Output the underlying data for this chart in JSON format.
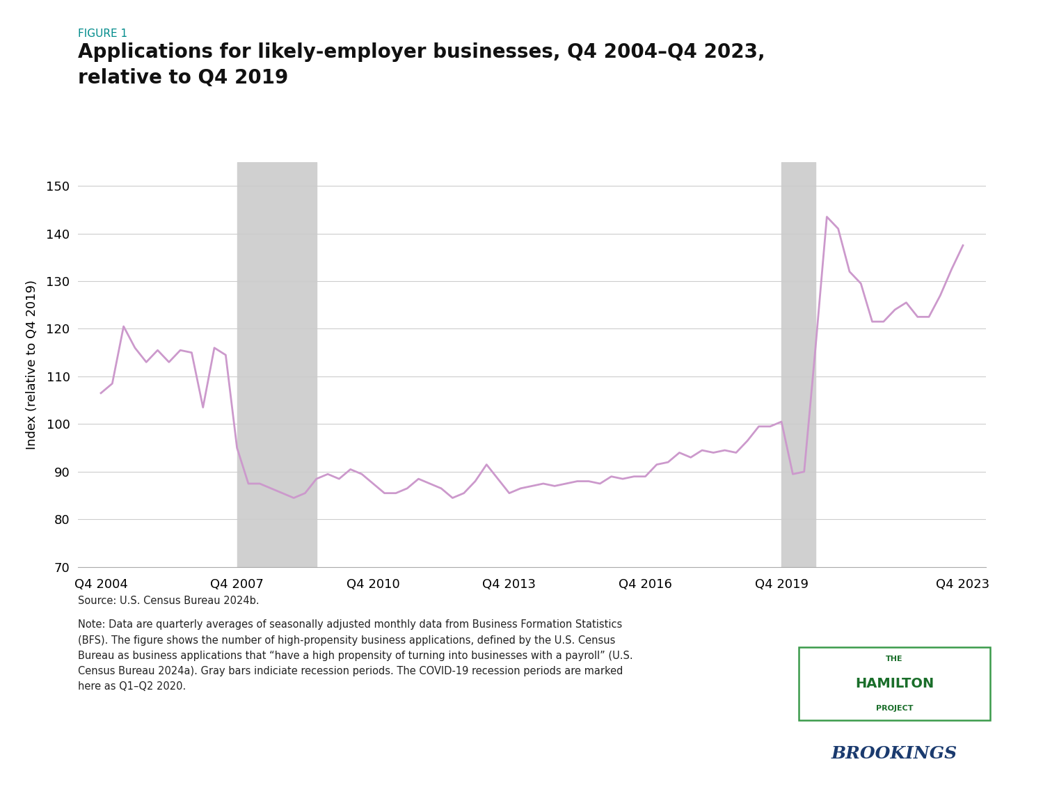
{
  "title_label": "FIGURE 1",
  "title_line1": "Applications for likely-employer businesses, Q4 2004–Q4 2023,",
  "title_line2": "relative to Q4 2019",
  "ylabel": "Index (relative to Q4 2019)",
  "ylim": [
    70,
    155
  ],
  "yticks": [
    70,
    80,
    90,
    100,
    110,
    120,
    130,
    140,
    150
  ],
  "line_color": "#cc99cc",
  "line_width": 2.0,
  "background_color": "#ffffff",
  "recession_color": "#d0d0d0",
  "recession_alpha": 1.0,
  "recessions": [
    {
      "start": 2007.75,
      "end": 2009.5
    },
    {
      "start": 2019.75,
      "end": 2020.5
    }
  ],
  "source_text": "Source: U.S. Census Bureau 2024b.",
  "note_text": "Note: Data are quarterly averages of seasonally adjusted monthly data from Business Formation Statistics\n(BFS). The figure shows the number of high-propensity business applications, defined by the U.S. Census\nBureau as business applications that “have a high propensity of turning into businesses with a payroll” (U.S.\nCensus Bureau 2024a). Gray bars indiciate recession periods. The COVID-19 recession periods are marked\nhere as Q1–Q2 2020.",
  "xtick_labels": [
    "Q4 2004",
    "Q4 2007",
    "Q4 2010",
    "Q4 2013",
    "Q4 2016",
    "Q4 2019",
    "Q4 2023"
  ],
  "xtick_positions": [
    2004.75,
    2007.75,
    2010.75,
    2013.75,
    2016.75,
    2019.75,
    2023.75
  ],
  "xlim": [
    2004.25,
    2024.25
  ],
  "data": [
    [
      2004.75,
      106.5
    ],
    [
      2005.0,
      108.5
    ],
    [
      2005.25,
      120.5
    ],
    [
      2005.5,
      116.0
    ],
    [
      2005.75,
      113.0
    ],
    [
      2006.0,
      115.5
    ],
    [
      2006.25,
      113.0
    ],
    [
      2006.5,
      115.5
    ],
    [
      2006.75,
      115.0
    ],
    [
      2007.0,
      103.5
    ],
    [
      2007.25,
      116.0
    ],
    [
      2007.5,
      114.5
    ],
    [
      2007.75,
      95.0
    ],
    [
      2008.0,
      87.5
    ],
    [
      2008.25,
      87.5
    ],
    [
      2008.5,
      86.5
    ],
    [
      2008.75,
      85.5
    ],
    [
      2009.0,
      84.5
    ],
    [
      2009.25,
      85.5
    ],
    [
      2009.5,
      88.5
    ],
    [
      2009.75,
      89.5
    ],
    [
      2010.0,
      88.5
    ],
    [
      2010.25,
      90.5
    ],
    [
      2010.5,
      89.5
    ],
    [
      2010.75,
      87.5
    ],
    [
      2011.0,
      85.5
    ],
    [
      2011.25,
      85.5
    ],
    [
      2011.5,
      86.5
    ],
    [
      2011.75,
      88.5
    ],
    [
      2012.0,
      87.5
    ],
    [
      2012.25,
      86.5
    ],
    [
      2012.5,
      84.5
    ],
    [
      2012.75,
      85.5
    ],
    [
      2013.0,
      88.0
    ],
    [
      2013.25,
      91.5
    ],
    [
      2013.5,
      88.5
    ],
    [
      2013.75,
      85.5
    ],
    [
      2014.0,
      86.5
    ],
    [
      2014.25,
      87.0
    ],
    [
      2014.5,
      87.5
    ],
    [
      2014.75,
      87.0
    ],
    [
      2015.0,
      87.5
    ],
    [
      2015.25,
      88.0
    ],
    [
      2015.5,
      88.0
    ],
    [
      2015.75,
      87.5
    ],
    [
      2016.0,
      89.0
    ],
    [
      2016.25,
      88.5
    ],
    [
      2016.5,
      89.0
    ],
    [
      2016.75,
      89.0
    ],
    [
      2017.0,
      91.5
    ],
    [
      2017.25,
      92.0
    ],
    [
      2017.5,
      94.0
    ],
    [
      2017.75,
      93.0
    ],
    [
      2018.0,
      94.5
    ],
    [
      2018.25,
      94.0
    ],
    [
      2018.5,
      94.5
    ],
    [
      2018.75,
      94.0
    ],
    [
      2019.0,
      96.5
    ],
    [
      2019.25,
      99.5
    ],
    [
      2019.5,
      99.5
    ],
    [
      2019.75,
      100.5
    ],
    [
      2020.0,
      89.5
    ],
    [
      2020.25,
      90.0
    ],
    [
      2020.5,
      116.0
    ],
    [
      2020.75,
      143.5
    ],
    [
      2021.0,
      141.0
    ],
    [
      2021.25,
      132.0
    ],
    [
      2021.5,
      129.5
    ],
    [
      2021.75,
      121.5
    ],
    [
      2022.0,
      121.5
    ],
    [
      2022.25,
      124.0
    ],
    [
      2022.5,
      125.5
    ],
    [
      2022.75,
      122.5
    ],
    [
      2023.0,
      122.5
    ],
    [
      2023.25,
      127.0
    ],
    [
      2023.5,
      132.5
    ],
    [
      2023.75,
      137.5
    ]
  ]
}
